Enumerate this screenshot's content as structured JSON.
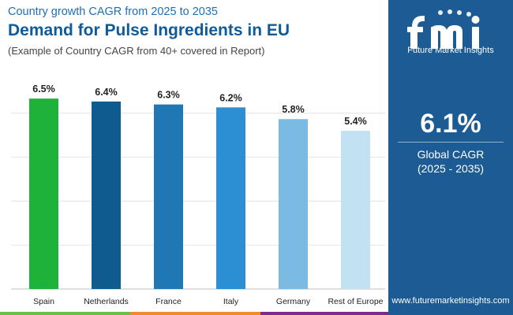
{
  "header": {
    "subtitle_top": "Country growth CAGR from 2025 to 2035",
    "title": "Demand for Pulse Ingredients in EU",
    "note": "(Example of Country CAGR from 40+ covered in Report)"
  },
  "sidebar": {
    "logo_text": "Future Market Insights",
    "kpi_value": "6.1%",
    "kpi_label": "Global CAGR",
    "kpi_range": "(2025 - 2035)",
    "website": "www.futuremarketinsights.com"
  },
  "colors": {
    "bars": [
      "#1eb23a",
      "#0f5a8f",
      "#1f77b4",
      "#2c8fd3",
      "#7bbbe3",
      "#c2e1f3"
    ],
    "sidebar": "#1c5b93",
    "bottom_bar": [
      "#6cc04a",
      "#f28c28",
      "#7b2d8b",
      "#1c5b93"
    ]
  },
  "chart_data": {
    "type": "bar",
    "categories": [
      "Spain",
      "Netherlands",
      "France",
      "Italy",
      "Germany",
      "Rest of Europe"
    ],
    "values": [
      6.5,
      6.4,
      6.3,
      6.2,
      5.8,
      5.4
    ],
    "data_labels": [
      "6.5%",
      "6.4%",
      "6.3%",
      "6.2%",
      "5.8%",
      "5.4%"
    ],
    "title": "Demand for Pulse Ingredients in EU",
    "xlabel": "",
    "ylabel": "",
    "ylim": [
      0,
      7.5
    ],
    "grid": true,
    "legend": "none"
  }
}
